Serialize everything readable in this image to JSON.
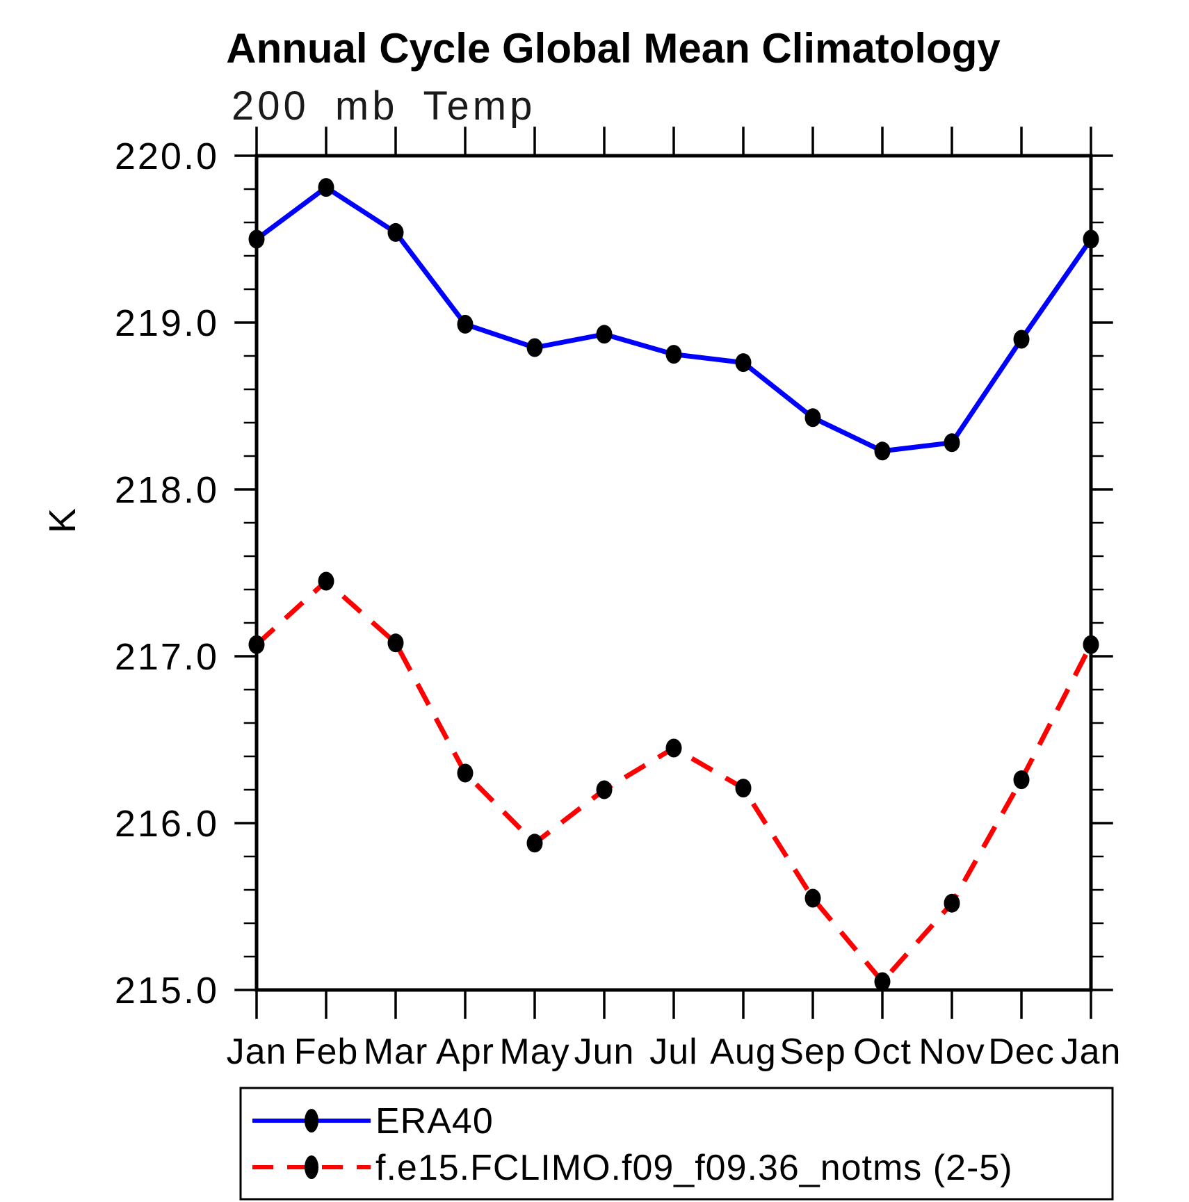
{
  "chart": {
    "title": "Annual Cycle Global Mean Climatology",
    "subtitle": "200 mb Temp",
    "ylabel": "K"
  },
  "chart_data": {
    "type": "line",
    "title": "Annual Cycle Global Mean Climatology",
    "subtitle": "200 mb Temp",
    "xlabel": "",
    "ylabel": "K",
    "categories": [
      "Jan",
      "Feb",
      "Mar",
      "Apr",
      "May",
      "Jun",
      "Jul",
      "Aug",
      "Sep",
      "Oct",
      "Nov",
      "Dec",
      "Jan"
    ],
    "series": [
      {
        "name": "ERA40",
        "color": "#0000ff",
        "line_style": "solid",
        "marker": "black-filled-ellipse",
        "values": [
          219.5,
          219.81,
          219.54,
          218.99,
          218.85,
          218.93,
          218.81,
          218.76,
          218.43,
          218.23,
          218.28,
          218.9,
          219.5
        ]
      },
      {
        "name": "f.e15.FCLIMO.f09_f09.36_notms (2-5)",
        "color": "#ff0000",
        "line_style": "dashed",
        "marker": "black-filled-ellipse",
        "values": [
          217.07,
          217.45,
          217.08,
          216.3,
          215.88,
          216.2,
          216.45,
          216.21,
          215.55,
          215.05,
          215.52,
          216.26,
          217.07
        ]
      }
    ],
    "ylim": [
      215.0,
      220.0
    ],
    "yticks": [
      220.0,
      219.0,
      218.0,
      217.0,
      216.0,
      215.0
    ],
    "ytick_labels": [
      "220.0",
      "219.0",
      "218.0",
      "217.0",
      "216.0",
      "215.0"
    ],
    "y_minor_tick_interval": 0.2,
    "grid": false,
    "legend_position": "bottom-left",
    "marker_color": "#000000",
    "axis_color": "#000000",
    "background_color": "#ffffff"
  }
}
